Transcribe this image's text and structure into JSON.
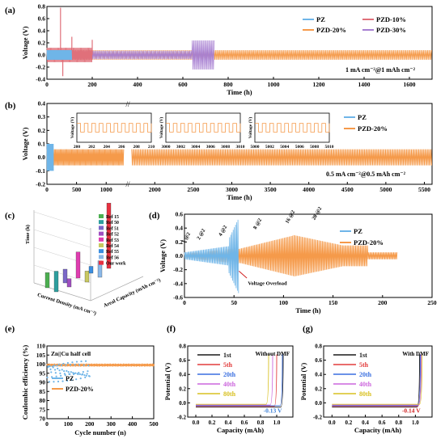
{
  "panel_labels": {
    "a": "(a)",
    "b": "(b)",
    "c": "(c)",
    "d": "(d)",
    "e": "(e)",
    "f": "(f)",
    "g": "(g)"
  },
  "colors": {
    "pz": "#6fb5e8",
    "pzd20": "#f59a4a",
    "pzd10": "#e0707a",
    "pzd30": "#a77fd1",
    "red_text": "#d02020",
    "blue_text": "#3b7fd6"
  },
  "chart_data": [
    {
      "panel": "a",
      "type": "line",
      "xlabel": "Time (h)",
      "ylabel": "Voltage (V)",
      "xlim": [
        0,
        1700
      ],
      "ylim": [
        -0.4,
        0.8
      ],
      "xticks": [
        0,
        200,
        400,
        600,
        800,
        1000,
        1200,
        1400,
        1600
      ],
      "yticks": [
        -0.4,
        -0.2,
        0.0,
        0.2,
        0.4,
        0.6,
        0.8
      ],
      "condition": "1 mA cm⁻²@1 mAh cm⁻²",
      "series": [
        {
          "name": "PZ",
          "end_h": 110,
          "amplitude": 0.08
        },
        {
          "name": "PZD-10%",
          "end_h": 200,
          "amplitude": 0.12,
          "spikes": [
            [
              60,
              0.78
            ],
            [
              70,
              -0.35
            ],
            [
              110,
              0.3
            ],
            [
              200,
              0.25
            ]
          ]
        },
        {
          "name": "PZD-20%",
          "end_h": 1700,
          "amplitude": 0.08
        },
        {
          "name": "PZD-30%",
          "end_h": 740,
          "amplitude": 0.07,
          "end_amplitude": 0.24
        }
      ]
    },
    {
      "panel": "b",
      "type": "line",
      "xlabel": "Time (h)",
      "ylabel": "Voltage (V)",
      "xlim": [
        0,
        5600
      ],
      "ylim": [
        -0.2,
        0.4
      ],
      "xticks": [
        0,
        500,
        1000,
        2000,
        2500,
        3000,
        3500,
        4000,
        4500,
        5000,
        5500
      ],
      "yticks": [
        -0.2,
        -0.1,
        0.0,
        0.1,
        0.2,
        0.3,
        0.4
      ],
      "condition": "0.5 mA cm⁻²@0.5 mAh cm⁻²",
      "series": [
        {
          "name": "PZ",
          "end_h": 110,
          "amplitude": 0.1
        },
        {
          "name": "PZD-20%",
          "end_h": 5600,
          "amplitude": 0.06
        }
      ],
      "insets": [
        {
          "xticks": [
            200,
            202,
            204,
            206,
            208,
            210
          ],
          "ylabel": "Voltage (V)"
        },
        {
          "xticks": [
            3000,
            3002,
            3004,
            3006,
            3008,
            3010
          ],
          "ylabel": "Voltage (V)"
        },
        {
          "xticks": [
            5000,
            5002,
            5004,
            5006,
            5008,
            5010
          ],
          "ylabel": "Voltage (V)"
        }
      ]
    },
    {
      "panel": "c",
      "type": "bar",
      "xlabel": "Current Density (mA cm⁻²)",
      "ylabel": "Time (h)",
      "zlabel": "Areal Capacity (mAh cm⁻²)",
      "categories": [
        "Ref 15",
        "Ref 50",
        "Ref 51",
        "Ref 52",
        "Ref 53",
        "Ref 54",
        "Ref 55",
        "Ref 56",
        "Our work"
      ],
      "legend_colors": [
        "#4caf50",
        "#2e9e9e",
        "#7b68c8",
        "#a04fc0",
        "#e03db0",
        "#c8c860",
        "#3a8ee0",
        "#8ab8e8",
        "#e83040"
      ],
      "values": [
        0.22,
        0.3,
        0.2,
        0.12,
        0.38,
        0.16,
        0.1,
        0.24,
        0.95
      ]
    },
    {
      "panel": "d",
      "type": "line",
      "xlabel": "Time (h)",
      "ylabel": "Voltage (V)",
      "xlim": [
        0,
        250
      ],
      "ylim": [
        -0.6,
        0.6
      ],
      "xticks": [
        0,
        50,
        100,
        150,
        200,
        250
      ],
      "yticks": [
        -0.6,
        -0.4,
        -0.2,
        0.0,
        0.2,
        0.4,
        0.6
      ],
      "rate_labels": [
        "1 @2",
        "2 @2",
        "4 @2",
        "8 @2",
        "16 @2",
        "20 @2"
      ],
      "annotation": "Voltage Overload",
      "series": [
        {
          "name": "PZ",
          "end_h": 55
        },
        {
          "name": "PZD-20%",
          "end_h": 215
        }
      ]
    },
    {
      "panel": "e",
      "type": "scatter",
      "xlabel": "Cycle number (n)",
      "ylabel": "Coulombic efficiency (%)",
      "xlim": [
        0,
        500
      ],
      "ylim": [
        70,
        110
      ],
      "xticks": [
        0,
        100,
        200,
        300,
        400,
        500
      ],
      "yticks": [
        70,
        75,
        80,
        85,
        90,
        95,
        100,
        105,
        110
      ],
      "title": "Zn||Cu half cell",
      "series": [
        {
          "name": "PZ",
          "end_cycle": 200,
          "mean": 96,
          "spread": 6
        },
        {
          "name": "PZD-20%",
          "end_cycle": 500,
          "mean": 99.5,
          "spread": 0.4
        }
      ]
    },
    {
      "panel": "f",
      "type": "line",
      "xlabel": "Capacity (mAh)",
      "ylabel": "Potential (V)",
      "xlim": [
        -0.1,
        1.2
      ],
      "ylim": [
        -0.2,
        0.8
      ],
      "xticks": [
        0.0,
        0.2,
        0.4,
        0.6,
        0.8,
        1.0
      ],
      "yticks": [
        -0.2,
        0.0,
        0.2,
        0.4,
        0.6,
        0.8
      ],
      "note": "Without DMF",
      "annotation": "-0.13 V",
      "series": [
        {
          "name": "1st",
          "color": "#1a1a1a",
          "end": 1.08
        },
        {
          "name": "5th",
          "color": "#e23b3b",
          "end": 1.0
        },
        {
          "name": "20th",
          "color": "#3a6fe0",
          "end": 1.07
        },
        {
          "name": "40th",
          "color": "#cc66dd",
          "end": 0.95
        },
        {
          "name": "80th",
          "color": "#d8c020",
          "end": 0.9
        }
      ]
    },
    {
      "panel": "g",
      "type": "line",
      "xlabel": "Capacity (mAh)",
      "ylabel": "Potential (V)",
      "xlim": [
        -0.1,
        1.2
      ],
      "ylim": [
        -0.2,
        0.8
      ],
      "xticks": [
        0.0,
        0.2,
        0.4,
        0.6,
        0.8,
        1.0
      ],
      "yticks": [
        -0.2,
        0.0,
        0.2,
        0.4,
        0.6,
        0.8
      ],
      "note": "With DMF",
      "annotation": "-0.14 V",
      "series": [
        {
          "name": "1st",
          "color": "#1a1a1a",
          "end": 1.05
        },
        {
          "name": "5th",
          "color": "#e23b3b",
          "end": 1.06
        },
        {
          "name": "20th",
          "color": "#3a6fe0",
          "end": 1.06
        },
        {
          "name": "40th",
          "color": "#cc66dd",
          "end": 1.07
        },
        {
          "name": "80th",
          "color": "#d8c020",
          "end": 1.08
        }
      ]
    }
  ]
}
